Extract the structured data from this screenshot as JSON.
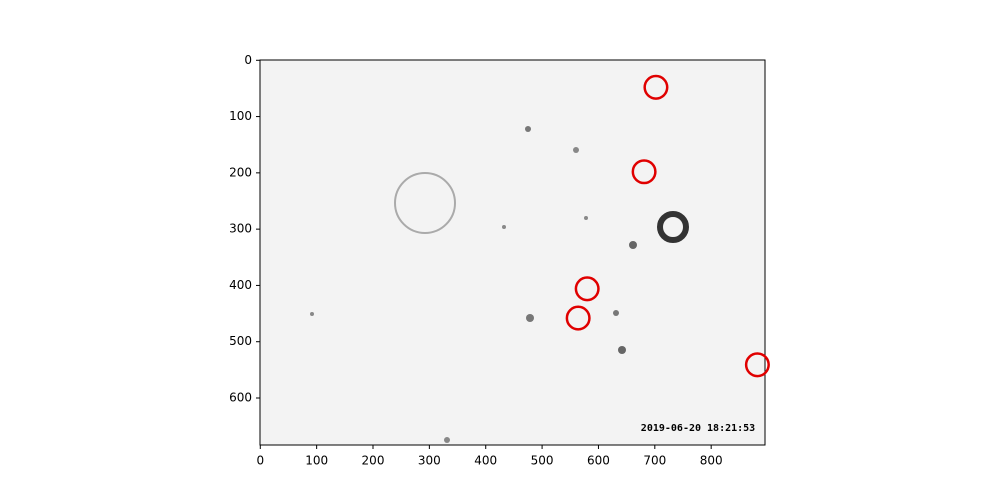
{
  "chart_data": {
    "type": "image",
    "annotation": "2019-06-20 18:21:53",
    "xlim": [
      -0.5,
      895.5
    ],
    "ylim": [
      683.5,
      -0.5
    ],
    "xticks": [
      0,
      100,
      200,
      300,
      400,
      500,
      600,
      700,
      800
    ],
    "yticks": [
      0,
      100,
      200,
      300,
      400,
      500,
      600
    ],
    "series": [
      {
        "x": [
          702,
          681,
          580,
          564,
          882
        ],
        "y": [
          48,
          198,
          406,
          458,
          541
        ],
        "color": "#e00000",
        "radius": 20
      }
    ]
  }
}
